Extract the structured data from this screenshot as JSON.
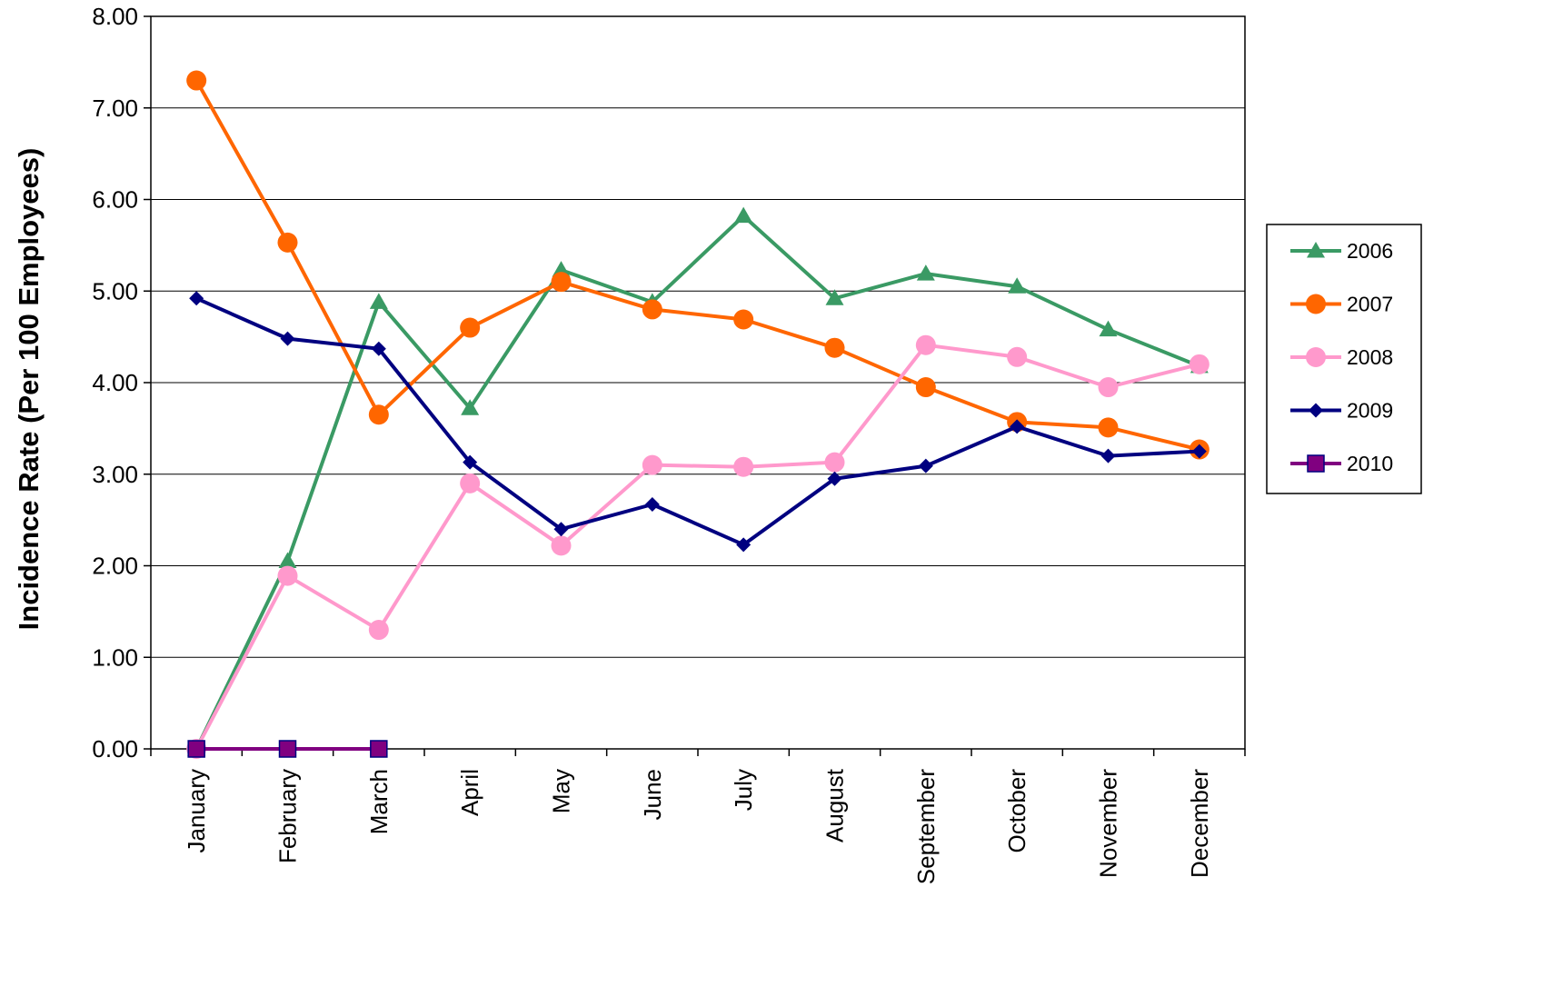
{
  "chart_data": {
    "type": "line",
    "title": "",
    "xlabel": "",
    "ylabel": "Incidence Rate (Per 100 Employees)",
    "ylim": [
      0,
      8
    ],
    "yticks": [
      "0.00",
      "1.00",
      "2.00",
      "3.00",
      "4.00",
      "5.00",
      "6.00",
      "7.00",
      "8.00"
    ],
    "grid": "horizontal",
    "legend_position": "right",
    "categories": [
      "January",
      "February",
      "March",
      "April",
      "May",
      "June",
      "July",
      "August",
      "September",
      "October",
      "November",
      "December"
    ],
    "series": [
      {
        "name": "2006",
        "color": "#3a9a64",
        "marker": "triangle",
        "values": [
          0.0,
          2.05,
          4.88,
          3.72,
          5.23,
          4.88,
          5.82,
          4.92,
          5.19,
          5.05,
          4.58,
          4.18
        ]
      },
      {
        "name": "2007",
        "color": "#ff6600",
        "marker": "circle",
        "values": [
          7.3,
          5.53,
          3.65,
          4.6,
          5.1,
          4.8,
          4.69,
          4.38,
          3.95,
          3.57,
          3.51,
          3.27
        ]
      },
      {
        "name": "2008",
        "color": "#ff99cc",
        "marker": "circle",
        "values": [
          0.0,
          1.89,
          1.3,
          2.9,
          2.22,
          3.1,
          3.08,
          3.13,
          4.41,
          4.28,
          3.95,
          4.2
        ]
      },
      {
        "name": "2009",
        "color": "#000080",
        "marker": "diamond",
        "values": [
          4.92,
          4.48,
          4.37,
          3.13,
          2.4,
          2.67,
          2.23,
          2.95,
          3.09,
          3.52,
          3.2,
          3.25
        ]
      },
      {
        "name": "2010",
        "color": "#800080",
        "marker": "square",
        "values": [
          0.0,
          0.0,
          0.0,
          null,
          null,
          null,
          null,
          null,
          null,
          null,
          null,
          null
        ]
      }
    ]
  }
}
